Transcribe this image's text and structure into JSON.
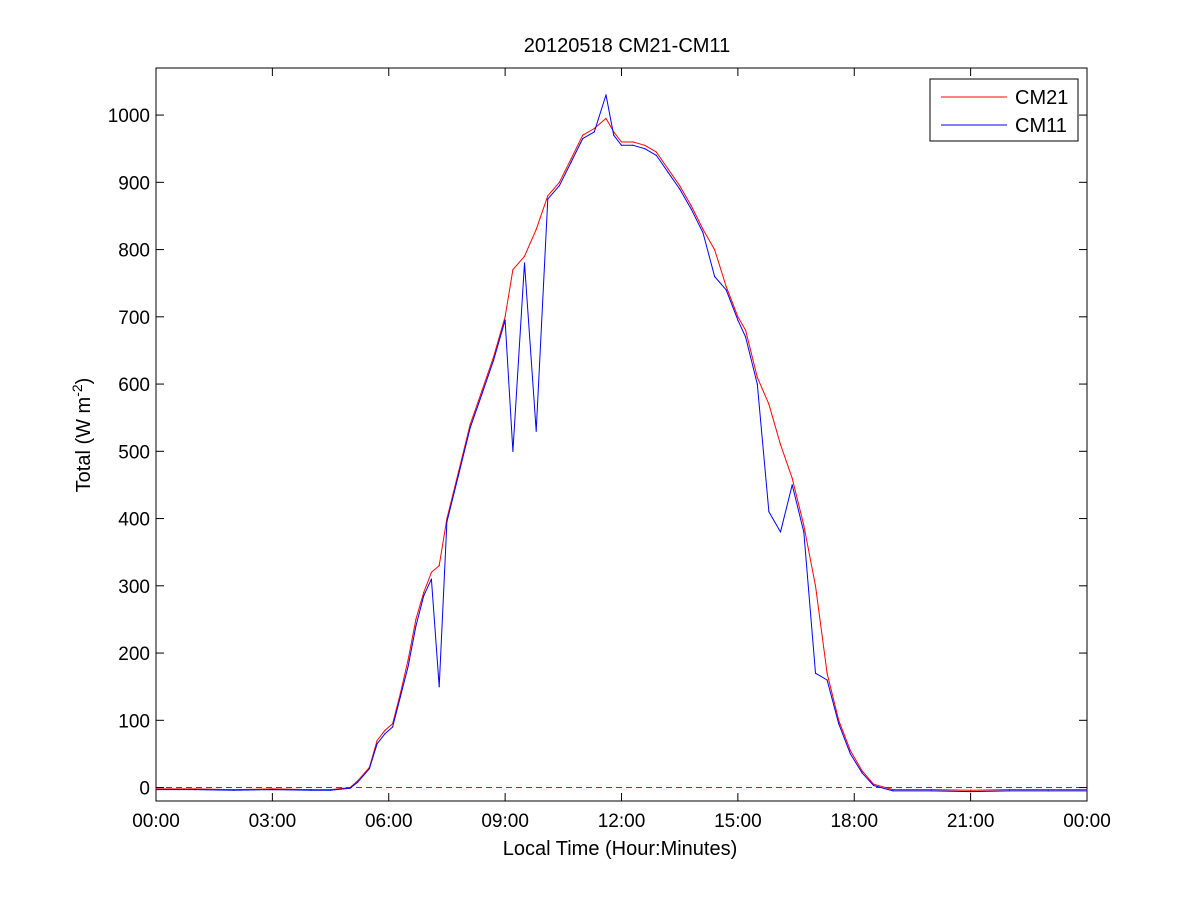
{
  "chart_data": {
    "type": "line",
    "title": "20120518 CM21-CM11",
    "xlabel": "Local Time (Hour:Minutes)",
    "ylabel": {
      "main": "Total (W m",
      "sup": "-2",
      "close": ")"
    },
    "xlim": [
      0,
      24
    ],
    "ylim": [
      -20,
      1070
    ],
    "xticks": [
      0,
      3,
      6,
      9,
      12,
      15,
      18,
      21,
      24
    ],
    "xtick_labels": [
      "00:00",
      "03:00",
      "06:00",
      "09:00",
      "12:00",
      "15:00",
      "18:00",
      "21:00",
      "00:00"
    ],
    "yticks": [
      0,
      100,
      200,
      300,
      400,
      500,
      600,
      700,
      800,
      900,
      1000
    ],
    "ytick_labels": [
      "0",
      "100",
      "200",
      "300",
      "400",
      "500",
      "600",
      "700",
      "800",
      "900",
      "1000"
    ],
    "grid": false,
    "legend_position": "top-right",
    "reference_line": {
      "y": 0,
      "style": "dashed",
      "color": "#b22222"
    },
    "series": [
      {
        "name": "CM21",
        "color": "#ff0000",
        "x": [
          0,
          1,
          2,
          3,
          4,
          4.5,
          5.0,
          5.2,
          5.5,
          5.7,
          5.9,
          6.1,
          6.3,
          6.5,
          6.7,
          6.9,
          7.1,
          7.3,
          7.5,
          7.8,
          8.1,
          8.4,
          8.7,
          9.0,
          9.2,
          9.5,
          9.8,
          10.1,
          10.4,
          10.7,
          11.0,
          11.3,
          11.6,
          11.8,
          12.0,
          12.3,
          12.6,
          12.9,
          13.2,
          13.5,
          13.8,
          14.1,
          14.4,
          14.7,
          15.0,
          15.2,
          15.5,
          15.8,
          16.1,
          16.4,
          16.7,
          17.0,
          17.3,
          17.6,
          17.9,
          18.2,
          18.5,
          19.0,
          20,
          21,
          22,
          23,
          24
        ],
        "values": [
          -2,
          -2,
          -3,
          -2,
          -3,
          -3,
          0,
          10,
          30,
          70,
          85,
          95,
          140,
          190,
          250,
          290,
          320,
          330,
          400,
          470,
          540,
          590,
          640,
          700,
          770,
          790,
          830,
          880,
          900,
          935,
          970,
          980,
          995,
          975,
          960,
          960,
          955,
          945,
          920,
          895,
          865,
          830,
          800,
          745,
          700,
          680,
          610,
          570,
          510,
          460,
          390,
          300,
          170,
          100,
          55,
          25,
          5,
          -3,
          -3,
          -4,
          -3,
          -3,
          -3
        ]
      },
      {
        "name": "CM11",
        "color": "#0000ff",
        "x": [
          0,
          1,
          2,
          3,
          4,
          4.5,
          5.0,
          5.2,
          5.5,
          5.7,
          5.9,
          6.1,
          6.3,
          6.5,
          6.7,
          6.9,
          7.1,
          7.3,
          7.5,
          7.8,
          8.1,
          8.4,
          8.7,
          9.0,
          9.2,
          9.5,
          9.8,
          10.1,
          10.4,
          10.7,
          11.0,
          11.3,
          11.6,
          11.8,
          12.0,
          12.3,
          12.6,
          12.9,
          13.2,
          13.5,
          13.8,
          14.1,
          14.4,
          14.7,
          15.0,
          15.2,
          15.5,
          15.8,
          16.1,
          16.4,
          16.7,
          17.0,
          17.3,
          17.6,
          17.9,
          18.2,
          18.5,
          19.0,
          20,
          21,
          22,
          23,
          24
        ],
        "values": [
          -3,
          -3,
          -4,
          -3,
          -4,
          -4,
          -1,
          8,
          28,
          65,
          80,
          90,
          135,
          180,
          240,
          285,
          310,
          150,
          395,
          465,
          535,
          585,
          635,
          695,
          500,
          780,
          530,
          875,
          895,
          930,
          965,
          975,
          1030,
          970,
          955,
          955,
          950,
          940,
          915,
          890,
          860,
          825,
          760,
          740,
          695,
          670,
          600,
          410,
          380,
          450,
          380,
          170,
          160,
          95,
          50,
          22,
          3,
          -5,
          -5,
          -6,
          -5,
          -5,
          -5
        ]
      }
    ]
  }
}
